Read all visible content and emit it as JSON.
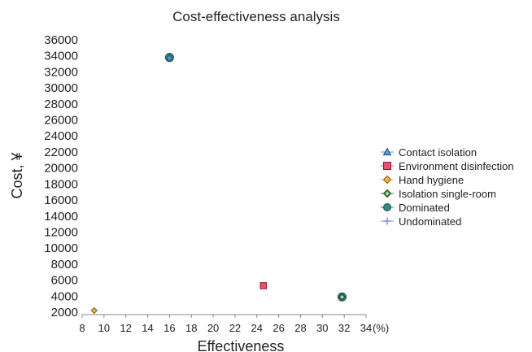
{
  "chart_data": {
    "type": "scatter",
    "title": "Cost-effectiveness analysis",
    "xlabel": "Effectiveness",
    "x_unit": "(%)",
    "ylabel": "Cost, ¥",
    "xlim": [
      8,
      34
    ],
    "ylim": [
      2000,
      36000
    ],
    "x_ticks": [
      8,
      10,
      12,
      14,
      16,
      18,
      20,
      22,
      24,
      26,
      28,
      30,
      32,
      34
    ],
    "y_ticks": [
      2000,
      4000,
      6000,
      8000,
      10000,
      12000,
      14000,
      16000,
      18000,
      20000,
      22000,
      24000,
      26000,
      28000,
      30000,
      32000,
      34000,
      36000
    ],
    "grid": false,
    "legend_position": "right",
    "series": [
      {
        "name": "Contact isolation",
        "marker": "triangle",
        "color": "#5a9bd5",
        "points": [
          {
            "x": 16.0,
            "y": 33800
          }
        ]
      },
      {
        "name": "Environment disinfection",
        "marker": "square",
        "color": "#e8506e",
        "points": [
          {
            "x": 24.6,
            "y": 5300
          }
        ]
      },
      {
        "name": "Hand hygiene",
        "marker": "diamond",
        "color": "#f2b33d",
        "points": [
          {
            "x": 9.1,
            "y": 2200
          }
        ]
      },
      {
        "name": "Isolation single-room",
        "marker": "diamond-cross",
        "color": "#3a8a3a",
        "points": [
          {
            "x": 31.8,
            "y": 3900
          }
        ]
      },
      {
        "name": "Dominated",
        "marker": "circle",
        "color": "#2e8b7e",
        "points": [
          {
            "x": 16.0,
            "y": 33800
          },
          {
            "x": 31.8,
            "y": 3900
          }
        ]
      },
      {
        "name": "Undominated",
        "marker": "plus",
        "color": "#8888cc",
        "points": []
      }
    ]
  }
}
